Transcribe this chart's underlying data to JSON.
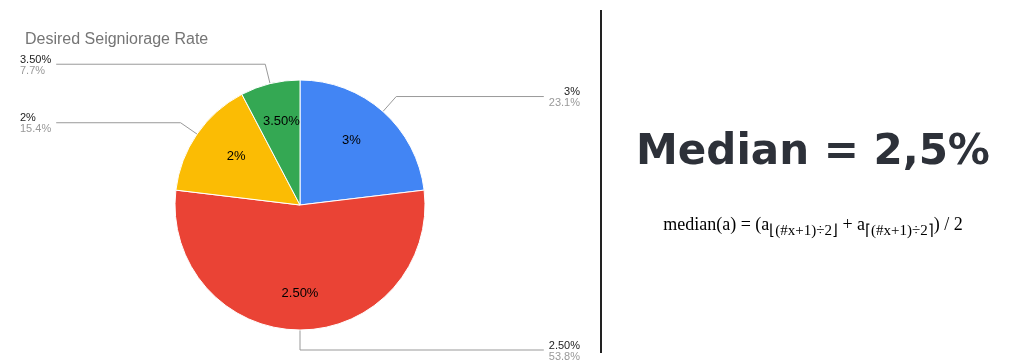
{
  "chart_data": {
    "type": "pie",
    "title": "Desired Seigniorage Rate",
    "categories": [
      "3%",
      "2.50%",
      "2%",
      "3.50%"
    ],
    "values": [
      23.1,
      53.8,
      15.4,
      7.7
    ],
    "colors": [
      "#4285f4",
      "#ea4335",
      "#fbbc04",
      "#34a853"
    ],
    "value_labels": [
      "23.1%",
      "53.8%",
      "15.4%",
      "7.7%"
    ],
    "legend": false,
    "annotations": [
      "Median = 2,5%",
      "median(a) = (a$_{⌊(#x+1)÷2⌋}$ + a$_{⌈(#x+1)÷2⌉}$) / 2"
    ]
  }
}
